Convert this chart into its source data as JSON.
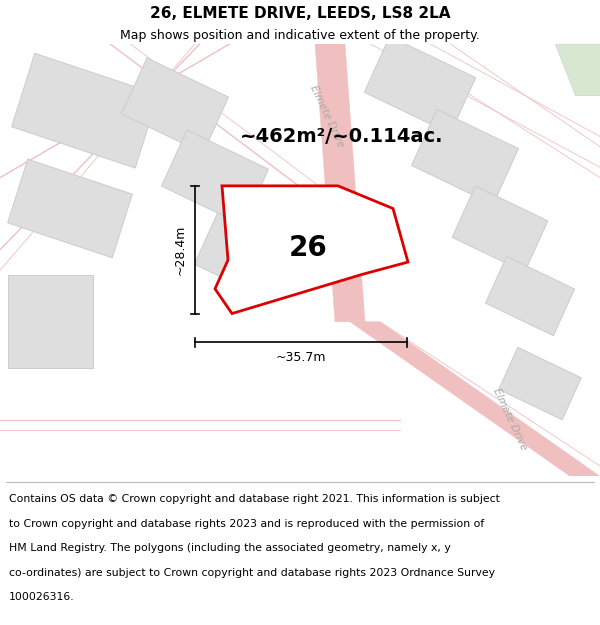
{
  "title": "26, ELMETE DRIVE, LEEDS, LS8 2LA",
  "subtitle": "Map shows position and indicative extent of the property.",
  "footer_lines": [
    "Contains OS data © Crown copyright and database right 2021. This information is subject",
    "to Crown copyright and database rights 2023 and is reproduced with the permission of",
    "HM Land Registry. The polygons (including the associated geometry, namely x, y",
    "co-ordinates) are subject to Crown copyright and database rights 2023 Ordnance Survey",
    "100026316."
  ],
  "map_bg": "#f2f0ef",
  "road_pink": "#f0c0c0",
  "road_line": "#e8a8a8",
  "bld_fill": "#dedede",
  "bld_edge": "#cccccc",
  "prop_fill": "#ffffff",
  "prop_edge": "#dd0000",
  "prop_lw": 2.0,
  "green_fill": "#d8e8d0",
  "green_edge": "#c8d8c0",
  "area_label": "~462m²/~0.114ac.",
  "num_label": "26",
  "dim_w": "~35.7m",
  "dim_h": "~28.4m",
  "street1": "Elmete Drive",
  "street2": "Elmete Drive",
  "title_fs": 11,
  "sub_fs": 9,
  "footer_fs": 7.8,
  "area_fs": 14,
  "num_fs": 20
}
